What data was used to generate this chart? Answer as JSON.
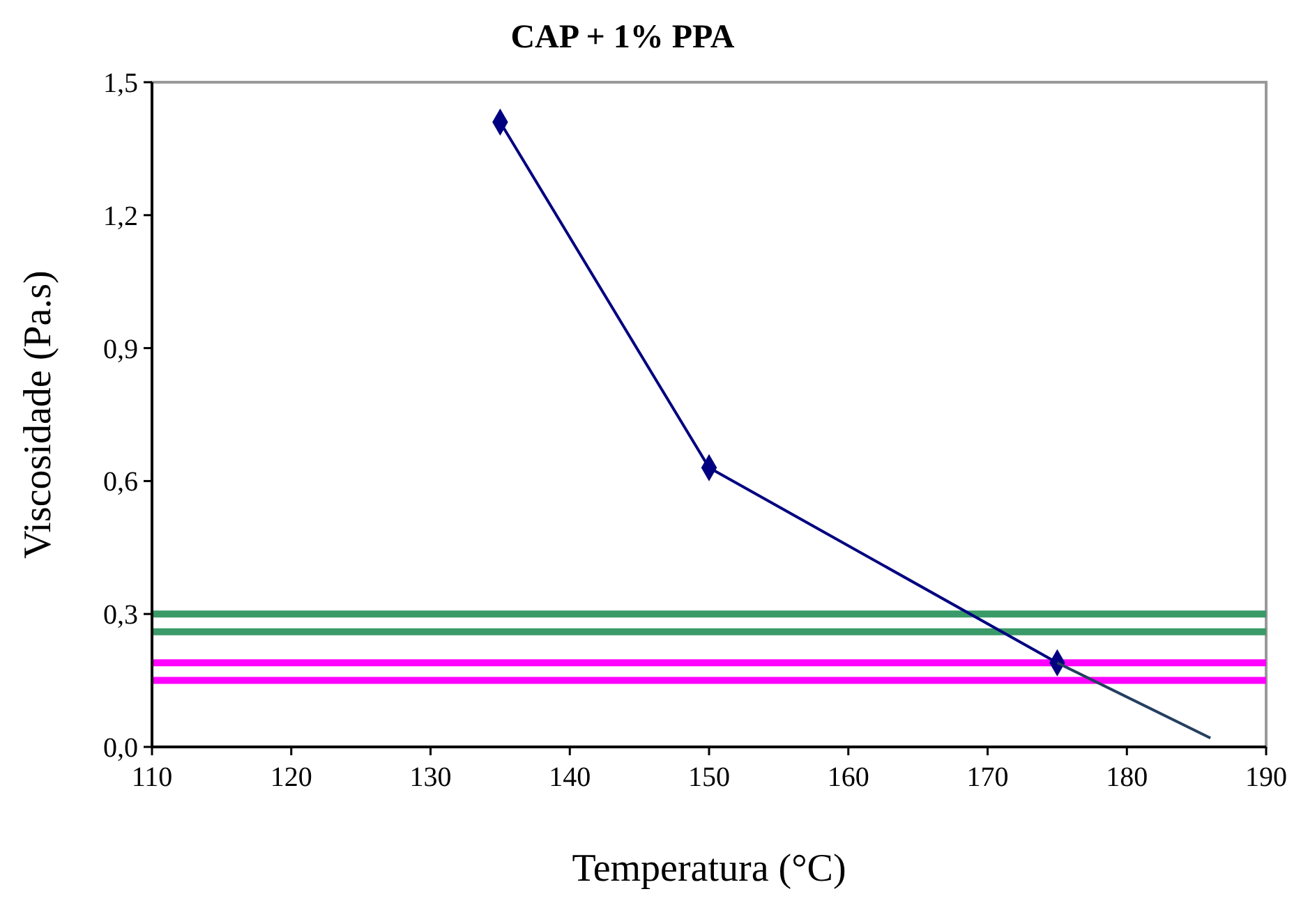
{
  "chart_data": {
    "type": "line",
    "title": "CAP + 1% PPA",
    "xlabel": "Temperatura (°C)",
    "ylabel": "Viscosidade (Pa.s)",
    "xlim": [
      110,
      190
    ],
    "xticks": [
      110,
      120,
      130,
      140,
      150,
      160,
      170,
      180,
      190
    ],
    "ylim": [
      0,
      1.5
    ],
    "yticks": [
      {
        "value": 0,
        "label": "0,0"
      },
      {
        "value": 0.3,
        "label": "0,3"
      },
      {
        "value": 0.6,
        "label": "0,6"
      },
      {
        "value": 0.9,
        "label": "0,9"
      },
      {
        "value": 1.2,
        "label": "1,2"
      },
      {
        "value": 1.5,
        "label": "1,5"
      }
    ],
    "series": [
      {
        "color": "#000080",
        "x": [
          135,
          150,
          175
        ],
        "values": [
          1.41,
          0.63,
          0.19
        ],
        "marker": "diamond"
      },
      {
        "color": "#243f60",
        "x": [
          175,
          186
        ],
        "values": [
          0.19,
          0.02
        ],
        "marker": "none"
      }
    ],
    "ref_lines": [
      {
        "axis": "y",
        "value": 0.3,
        "color": "#3a9a68"
      },
      {
        "axis": "y",
        "value": 0.26,
        "color": "#3a9a68"
      },
      {
        "axis": "y",
        "value": 0.19,
        "color": "#ff00ff"
      },
      {
        "axis": "y",
        "value": 0.15,
        "color": "#ff00ff"
      }
    ],
    "grid": false
  }
}
